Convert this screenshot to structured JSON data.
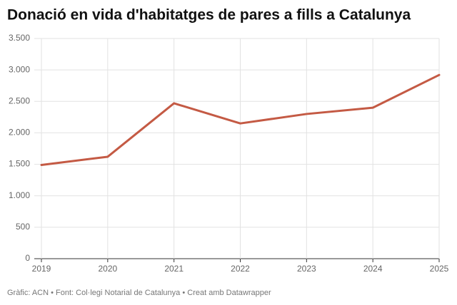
{
  "chart_data": {
    "type": "line",
    "title": "Donació en vida d'habitatges de pares a fills a Catalunya",
    "source": "Gràfic: ACN • Font: Col·legi Notarial de Catalunya • Creat amb Datawrapper",
    "x": [
      2019,
      2020,
      2021,
      2022,
      2023,
      2024,
      2025
    ],
    "series": [
      {
        "color": "#c45a44",
        "values": [
          1490,
          1620,
          2470,
          2150,
          2300,
          2400,
          2920
        ]
      }
    ],
    "xlim": [
      2019,
      2025
    ],
    "xticks": [
      2019,
      2020,
      2021,
      2022,
      2023,
      2024,
      2025
    ],
    "ylim": [
      0,
      3500
    ],
    "yticks": [
      0,
      500,
      {
        "value": 1000,
        "label": "1.000"
      },
      {
        "value": 1500,
        "label": "1.500"
      },
      {
        "value": 2000,
        "label": "2.000"
      },
      {
        "value": 2500,
        "label": "2.500"
      },
      {
        "value": 3000,
        "label": "3.000"
      },
      {
        "value": 3500,
        "label": "3.500"
      }
    ],
    "grid": true
  }
}
